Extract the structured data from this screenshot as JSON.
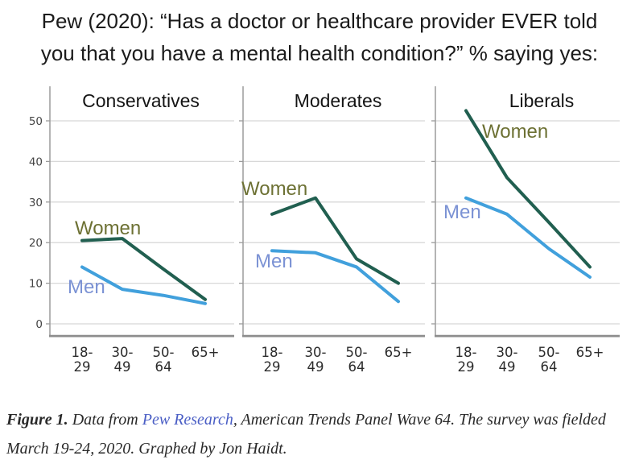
{
  "title": {
    "line1": "Pew (2020): “Has a doctor or healthcare provider EVER told",
    "line2": "you that you have a mental health condition?” % saying yes:"
  },
  "chart_data": {
    "type": "line",
    "categories": [
      "18-29",
      "30-49",
      "50-64",
      "65+"
    ],
    "category_tick_lines": [
      [
        "18-",
        "29"
      ],
      [
        "30-",
        "49"
      ],
      [
        "50-",
        "64"
      ],
      [
        "65+"
      ]
    ],
    "yticks": [
      0,
      10,
      20,
      30,
      40,
      50
    ],
    "ylim": [
      -3,
      58.5
    ],
    "grid": true,
    "legend_position": "inline-labels",
    "panels": [
      {
        "title": "Conservatives",
        "series": [
          {
            "name": "Women",
            "values": [
              20.5,
              21,
              13.5,
              6
            ]
          },
          {
            "name": "Men",
            "values": [
              14,
              8.5,
              7,
              5
            ]
          }
        ]
      },
      {
        "title": "Moderates",
        "series": [
          {
            "name": "Women",
            "values": [
              27,
              31,
              16,
              10
            ]
          },
          {
            "name": "Men",
            "values": [
              18,
              17.5,
              14,
              5.5
            ]
          }
        ]
      },
      {
        "title": "Liberals",
        "series": [
          {
            "name": "Women",
            "values": [
              52.5,
              36,
              25,
              14
            ]
          },
          {
            "name": "Men",
            "values": [
              31,
              27,
              18.5,
              11.5
            ]
          }
        ]
      }
    ],
    "colors": {
      "women_line": "#215f50",
      "men_line": "#41a0dc",
      "women_label": "#6d7134",
      "men_label": "#7b92d4",
      "grid": "#d8d8d8",
      "axis": "#9b9b9b",
      "axis_bottom": "#8d8d8d"
    }
  },
  "caption": {
    "figure_label": "Figure 1.",
    "text_before_link": "  Data from ",
    "link": "Pew Research",
    "link_color": "#4a5ec5",
    "text_after_link": ", American Trends Panel Wave 64. The survey was fielded ",
    "text_line2": "March 19-24, 2020. Graphed by Jon Haidt."
  }
}
